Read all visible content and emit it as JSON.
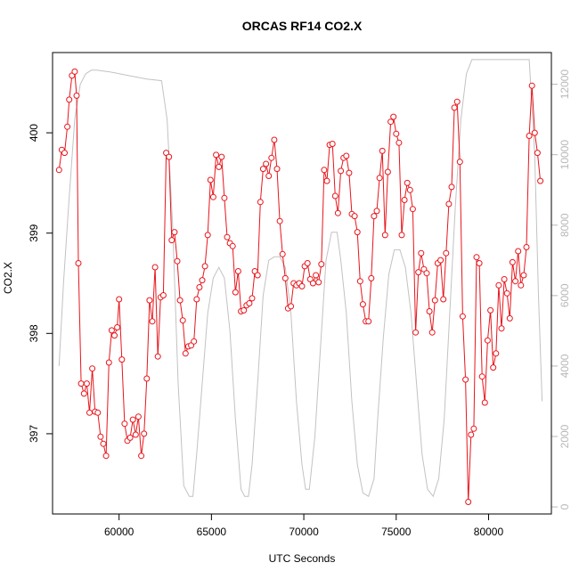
{
  "chart_data": {
    "type": "line",
    "title": "ORCAS RF14 CO2.X",
    "xlabel": "UTC Seconds",
    "ylabel": "CO2.X",
    "xlim": [
      56400,
      83400
    ],
    "ylim": [
      396.2,
      400.8
    ],
    "y2lim": [
      -200,
      12900
    ],
    "x_ticks": [
      60000,
      65000,
      70000,
      75000,
      80000
    ],
    "y_ticks": [
      397,
      398,
      399,
      400
    ],
    "y2_ticks": [
      0,
      2000,
      4000,
      6000,
      8000,
      10000,
      12000
    ],
    "series": [
      {
        "role": "CO2.X",
        "color": "#e8151b",
        "axis": "left",
        "markers": "open-circle",
        "x": [
          56750,
          56900,
          57050,
          57200,
          57300,
          57450,
          57600,
          57700,
          57800,
          57950,
          58100,
          58250,
          58400,
          58550,
          58700,
          58850,
          59000,
          59150,
          59300,
          59450,
          59600,
          59750,
          59900,
          60000,
          60150,
          60300,
          60450,
          60600,
          60750,
          60900,
          61050,
          61200,
          61350,
          61500,
          61650,
          61800,
          61950,
          62100,
          62250,
          62400,
          62550,
          62700,
          62850,
          63000,
          63150,
          63300,
          63450,
          63600,
          63750,
          63900,
          64050,
          64200,
          64350,
          64500,
          64650,
          64800,
          64950,
          65100,
          65250,
          65400,
          65550,
          65700,
          65850,
          66000,
          66150,
          66300,
          66450,
          66600,
          66750,
          66900,
          67050,
          67200,
          67350,
          67500,
          67650,
          67800,
          67950,
          68100,
          68250,
          68400,
          68550,
          68700,
          68850,
          69000,
          69150,
          69300,
          69450,
          69600,
          69750,
          69900,
          70050,
          70200,
          70350,
          70500,
          70650,
          70800,
          70950,
          71100,
          71250,
          71400,
          71550,
          71700,
          71850,
          72000,
          72150,
          72300,
          72450,
          72600,
          72750,
          72900,
          73050,
          73200,
          73350,
          73500,
          73650,
          73800,
          73950,
          74100,
          74250,
          74400,
          74550,
          74700,
          74850,
          75000,
          75150,
          75300,
          75450,
          75600,
          75750,
          75900,
          76050,
          76200,
          76350,
          76500,
          76650,
          76800,
          76950,
          77100,
          77250,
          77400,
          77550,
          77700,
          77850,
          78000,
          78150,
          78300,
          78450,
          78600,
          78750,
          78900,
          79050,
          79200,
          79350,
          79500,
          79650,
          79800,
          79950,
          80100,
          80250,
          80400,
          80550,
          80700,
          80850,
          81000,
          81150,
          81300,
          81450,
          81600,
          81750,
          81900,
          82050,
          82200,
          82350,
          82500,
          82650,
          82800
        ],
        "values": [
          399.63,
          399.83,
          399.8,
          400.06,
          400.33,
          400.57,
          400.61,
          400.37,
          398.7,
          397.5,
          397.4,
          397.5,
          397.21,
          397.65,
          397.22,
          397.21,
          396.97,
          396.9,
          396.78,
          397.71,
          398.03,
          397.98,
          398.06,
          398.34,
          397.74,
          397.1,
          396.93,
          396.96,
          397.14,
          396.99,
          397.17,
          396.78,
          397.0,
          397.55,
          398.33,
          398.12,
          398.66,
          397.77,
          398.36,
          398.38,
          399.8,
          399.76,
          398.93,
          399.01,
          398.72,
          398.33,
          398.13,
          397.8,
          397.87,
          397.88,
          397.92,
          398.34,
          398.46,
          398.53,
          398.67,
          398.98,
          399.53,
          399.36,
          399.78,
          399.66,
          399.76,
          399.35,
          398.96,
          398.9,
          398.87,
          398.41,
          398.62,
          398.22,
          398.23,
          398.28,
          398.3,
          398.35,
          398.62,
          398.58,
          399.31,
          399.64,
          399.69,
          399.57,
          399.75,
          399.93,
          399.64,
          399.12,
          398.79,
          398.55,
          398.25,
          398.27,
          398.5,
          398.48,
          398.5,
          398.47,
          398.67,
          398.7,
          398.54,
          398.5,
          398.58,
          398.51,
          398.69,
          399.63,
          399.52,
          399.88,
          399.89,
          399.37,
          399.2,
          399.62,
          399.75,
          399.77,
          399.6,
          399.19,
          399.17,
          399.01,
          398.52,
          398.29,
          398.12,
          398.12,
          398.55,
          399.17,
          399.22,
          399.55,
          399.82,
          398.98,
          399.61,
          400.11,
          400.16,
          399.99,
          399.9,
          398.98,
          399.33,
          399.5,
          399.43,
          399.24,
          398.01,
          398.61,
          398.8,
          398.64,
          398.6,
          398.22,
          398.01,
          398.33,
          398.7,
          398.73,
          398.34,
          398.8,
          399.29,
          399.46,
          400.25,
          400.31,
          399.71,
          398.17,
          397.54,
          396.32,
          396.99,
          397.05,
          398.76,
          398.7,
          397.57,
          397.31,
          397.93,
          398.23,
          397.66,
          397.8,
          398.48,
          398.05,
          398.54,
          398.4,
          398.15,
          398.71,
          398.52,
          398.82,
          398.48,
          398.58,
          398.86,
          399.97,
          400.47,
          400.0,
          399.8,
          399.52
        ]
      },
      {
        "role": "altitude",
        "color": "#c2c2c2",
        "axis": "right",
        "x": [
          56750,
          57000,
          57300,
          57600,
          57900,
          58200,
          58500,
          58800,
          59500,
          60500,
          61500,
          62300,
          62600,
          62900,
          63200,
          63500,
          63800,
          64000,
          64200,
          64500,
          64800,
          65100,
          65400,
          65700,
          66000,
          66300,
          66600,
          66800,
          67000,
          67200,
          67500,
          67800,
          68100,
          68400,
          68700,
          69000,
          69300,
          69600,
          69900,
          70100,
          70300,
          70600,
          70900,
          71200,
          71500,
          71800,
          72000,
          72300,
          72600,
          72900,
          73200,
          73500,
          73800,
          74000,
          74300,
          74600,
          74900,
          75200,
          75500,
          75800,
          76100,
          76400,
          76700,
          77000,
          77300,
          77600,
          77900,
          78200,
          78500,
          78800,
          79100,
          79300,
          80000,
          81000,
          82200,
          82500,
          82700,
          82900
        ],
        "values": [
          4000,
          6400,
          8800,
          11000,
          12000,
          12300,
          12400,
          12400,
          12350,
          12250,
          12150,
          12100,
          11000,
          8000,
          3500,
          600,
          300,
          300,
          1500,
          3500,
          5500,
          6500,
          6800,
          6500,
          5000,
          2500,
          500,
          300,
          300,
          1200,
          3500,
          6000,
          7000,
          7100,
          7100,
          6800,
          5500,
          3000,
          1200,
          500,
          500,
          2000,
          4500,
          7000,
          7800,
          7800,
          7000,
          5500,
          3000,
          1200,
          400,
          300,
          800,
          2500,
          4800,
          6600,
          7300,
          7300,
          6800,
          5500,
          3500,
          1500,
          500,
          300,
          800,
          2500,
          5500,
          8500,
          11000,
          12300,
          12700,
          12700,
          12700,
          12700,
          12700,
          10000,
          6000,
          3000
        ]
      }
    ]
  }
}
